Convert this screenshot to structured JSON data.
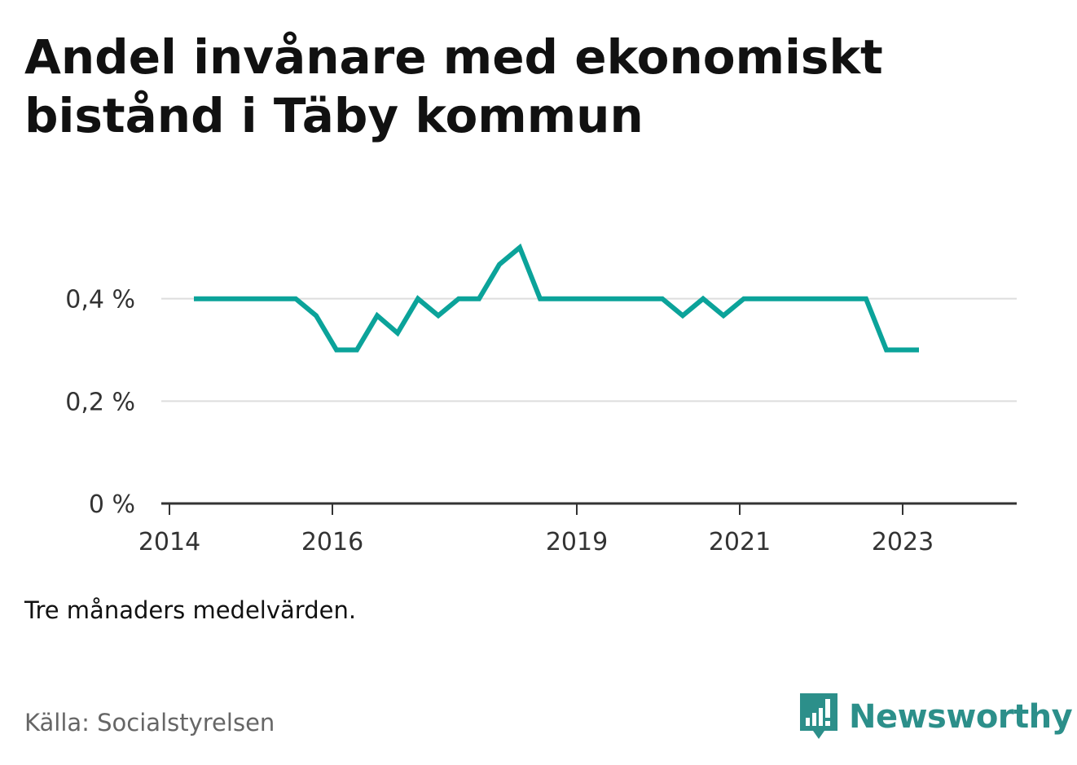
{
  "header": {
    "title": "Andel invånare med ekonomiskt bistånd i Täby kommun"
  },
  "footer": {
    "note": "Tre månaders medelvärden.",
    "source": "Källa: Socialstyrelsen",
    "brand": "Newsworthy"
  },
  "colors": {
    "line": "#0ba39a",
    "grid": "#dddddd",
    "axis": "#333333",
    "brand": "#2c8f8a"
  },
  "icons": {
    "brand_logo": "bar-chart-speech-bubble-icon"
  },
  "chart_data": {
    "type": "line",
    "title": "Andel invånare med ekonomiskt bistånd i Täby kommun",
    "xlabel": "",
    "ylabel": "",
    "x_ticks": [
      {
        "value": 2014,
        "label": "2014"
      },
      {
        "value": 2016,
        "label": "2016"
      },
      {
        "value": 2019,
        "label": "2019"
      },
      {
        "value": 2021,
        "label": "2021"
      },
      {
        "value": 2023,
        "label": "2023"
      }
    ],
    "y_ticks": [
      {
        "value": 0,
        "label": "0 %"
      },
      {
        "value": 0.2,
        "label": "0,2 %"
      },
      {
        "value": 0.4,
        "label": "0,4 %"
      }
    ],
    "xlim": [
      2013.9,
      2024.4
    ],
    "ylim": [
      0,
      0.53
    ],
    "grid": true,
    "series": [
      {
        "x": [
          2014.3,
          2014.55,
          2014.8,
          2015.05,
          2015.3,
          2015.55,
          2015.8,
          2016.05,
          2016.3,
          2016.55,
          2016.8,
          2017.05,
          2017.3,
          2017.55,
          2017.8,
          2018.05,
          2018.3,
          2018.55,
          2018.8,
          2019.05,
          2019.3,
          2019.55,
          2019.8,
          2020.05,
          2020.3,
          2020.55,
          2020.8,
          2021.05,
          2021.3,
          2021.55,
          2021.8,
          2022.05,
          2022.3,
          2022.55,
          2022.8,
          2023.05,
          2023.2
        ],
        "values": [
          0.4,
          0.4,
          0.4,
          0.4,
          0.4,
          0.4,
          0.367,
          0.3,
          0.3,
          0.367,
          0.333,
          0.4,
          0.367,
          0.4,
          0.4,
          0.467,
          0.5,
          0.4,
          0.4,
          0.4,
          0.4,
          0.4,
          0.4,
          0.4,
          0.367,
          0.4,
          0.367,
          0.4,
          0.4,
          0.4,
          0.4,
          0.4,
          0.4,
          0.4,
          0.3,
          0.3,
          0.3
        ]
      }
    ]
  }
}
